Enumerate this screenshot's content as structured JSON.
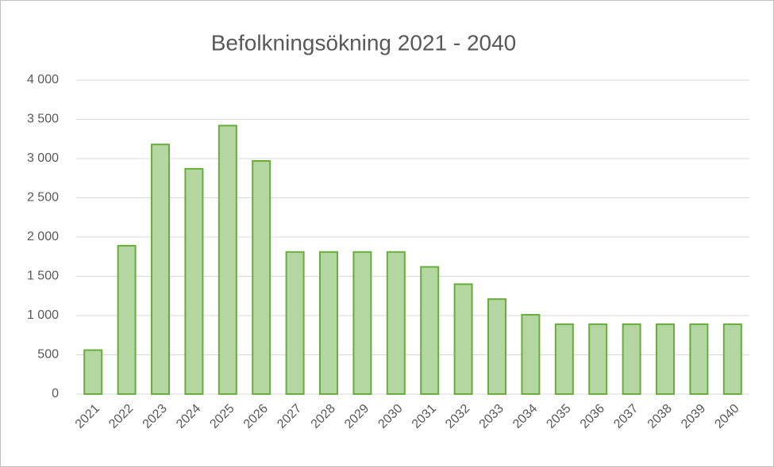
{
  "chart_data": {
    "type": "bar",
    "title": "Befolkningsökning  2021 - 2040",
    "categories": [
      "2021",
      "2022",
      "2023",
      "2024",
      "2025",
      "2026",
      "2027",
      "2028",
      "2029",
      "2030",
      "2031",
      "2032",
      "2033",
      "2034",
      "2035",
      "2036",
      "2037",
      "2038",
      "2039",
      "2040"
    ],
    "values": [
      560,
      1890,
      3180,
      2870,
      3420,
      2970,
      1810,
      1810,
      1810,
      1810,
      1620,
      1400,
      1210,
      1010,
      890,
      890,
      890,
      890,
      890,
      890
    ],
    "color": "#b4d6a0",
    "edge_color": "#6aac3e",
    "ylim": [
      0,
      4000
    ],
    "yticks": [
      0,
      500,
      {
        "value": 1000,
        "label": "1 000"
      },
      {
        "value": 1500,
        "label": "1 500"
      },
      {
        "value": 2000,
        "label": "2 000"
      },
      {
        "value": 2500,
        "label": "2 500"
      },
      {
        "value": 3000,
        "label": "3 000"
      },
      {
        "value": 3500,
        "label": "3 500"
      },
      {
        "value": 4000,
        "label": "4 000"
      }
    ],
    "grid": true
  }
}
